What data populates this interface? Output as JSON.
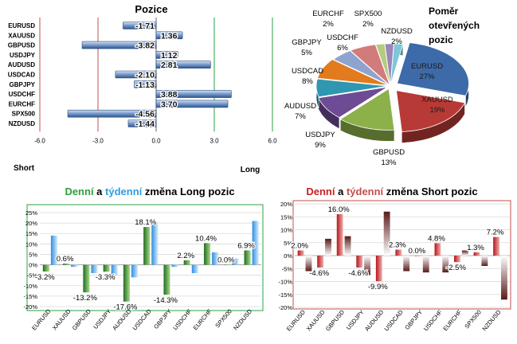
{
  "colors": {
    "bar_blue": "#5f86bf",
    "long_daily": "#2f8a2f",
    "long_weekly": "#4aa6e6",
    "short_daily": "#c62026",
    "short_weekly": "#5a1a1a",
    "green_line": "#2ea043",
    "red_line": "#c0504d"
  },
  "chart_data": [
    {
      "type": "bar",
      "orientation": "horizontal",
      "title": "Pozice",
      "categories": [
        "EURUSD",
        "XAUUSD",
        "GBPUSD",
        "USDJPY",
        "AUDUSD",
        "USDCAD",
        "GBPJPY",
        "USDCHF",
        "EURCHF",
        "SPX500",
        "NZDUSD"
      ],
      "values": [
        -1.71,
        1.36,
        -3.82,
        1.12,
        2.81,
        -2.1,
        -1.13,
        3.88,
        3.7,
        -4.56,
        -1.44
      ],
      "value_labels": [
        "-1.71",
        "1.36",
        "-3.82",
        "1.12",
        "2.81",
        "-2.10",
        "-1.13",
        "3.88",
        "3.70",
        "-4.56",
        "-1.44"
      ],
      "xlim": [
        -6,
        6
      ],
      "xticks": [
        "-6.0",
        "-3.0",
        "0.0",
        "3.0",
        "6.0"
      ],
      "xtick_values": [
        -6,
        -3,
        0,
        3,
        6
      ],
      "side_labels": {
        "left": "Short",
        "right": "Long"
      }
    },
    {
      "type": "pie",
      "title": "Poměr otevřených pozic",
      "slices": [
        {
          "label": "EURUSD",
          "value": 27,
          "text": "27%",
          "color": "#3d6aa8"
        },
        {
          "label": "XAUUSD",
          "value": 19,
          "text": "19%",
          "color": "#b83a36"
        },
        {
          "label": "GBPUSD",
          "value": 13,
          "text": "13%",
          "color": "#8cb04a"
        },
        {
          "label": "USDJPY",
          "value": 9,
          "text": "9%",
          "color": "#6e4b94"
        },
        {
          "label": "AUDUSD",
          "value": 7,
          "text": "7%",
          "color": "#2f97b0"
        },
        {
          "label": "USDCAD",
          "value": 8,
          "text": "8%",
          "color": "#e27a1e"
        },
        {
          "label": "GBPJPY",
          "value": 5,
          "text": "5%",
          "color": "#8ea4cf"
        },
        {
          "label": "USDCHF",
          "value": 6,
          "text": "6%",
          "color": "#d17b7a"
        },
        {
          "label": "EURCHF",
          "value": 2,
          "text": "2%",
          "color": "#b4cc7e"
        },
        {
          "label": "SPX500",
          "value": 2,
          "text": "2%",
          "color": "#9b86b8"
        },
        {
          "label": "NZDUSD",
          "value": 2,
          "text": "2%",
          "color": "#7ec6d8"
        }
      ]
    },
    {
      "type": "bar",
      "title_parts": [
        "Denní",
        " a ",
        "týdenní",
        " změna Long pozic"
      ],
      "categories": [
        "EURUSD",
        "XAUUSD",
        "GBPUSD",
        "USDJPY",
        "AUDUSD",
        "USDCAD",
        "GBPJPY",
        "USDCHF",
        "EURCHF",
        "SPX500",
        "NZDUSD"
      ],
      "series": [
        {
          "values": [
            -3.2,
            0.6,
            -13.2,
            -3.3,
            -17.6,
            18.1,
            -14.3,
            2.2,
            10.4,
            0.0,
            6.9
          ]
        },
        {
          "values": [
            14.0,
            -1.0,
            -4.0,
            -5.0,
            -6.0,
            20.5,
            -1.0,
            -4.0,
            6.0,
            3.0,
            21.0
          ]
        }
      ],
      "data_labels": [
        "-3.2%",
        "0.6%",
        "-13.2%",
        "-3.3%",
        "-17.6%",
        "18.1%",
        "-14.3%",
        "2.2%",
        "10.4%",
        "0.0%",
        "6.9%"
      ],
      "ylim": [
        -20,
        25
      ],
      "yticks": [
        "-20%",
        "-15%",
        "-10%",
        "-5%",
        "0%",
        "5%",
        "10%",
        "15%",
        "20%",
        "25%"
      ],
      "ytick_values": [
        -20,
        -15,
        -10,
        -5,
        0,
        5,
        10,
        15,
        20,
        25
      ]
    },
    {
      "type": "bar",
      "title_parts": [
        "Denní",
        " a ",
        "týdenní",
        " změna Short pozic"
      ],
      "categories": [
        "EURUSD",
        "XAUUSD",
        "GBPUSD",
        "USDJPY",
        "AUDUSD",
        "USDCAD",
        "GBPJPY",
        "USDCHF",
        "EURCHF",
        "SPX500",
        "NZDUSD"
      ],
      "series": [
        {
          "values": [
            2.0,
            -4.6,
            16.0,
            -4.6,
            -9.9,
            2.3,
            0.0,
            4.8,
            -2.5,
            1.3,
            7.2
          ]
        },
        {
          "values": [
            -6.0,
            6.5,
            7.5,
            -7.5,
            17.0,
            -6.0,
            -6.5,
            -6.5,
            2.0,
            -4.0,
            -17.0
          ]
        }
      ],
      "data_labels": [
        "2.0%",
        "-4.6%",
        "16.0%",
        "-4.6%",
        "-9.9%",
        "2.3%",
        "0.0%",
        "4.8%",
        "-2.5%",
        "1.3%",
        "7.2%"
      ],
      "ylim": [
        -20,
        20
      ],
      "yticks": [
        "-20%",
        "-15%",
        "-10%",
        "-5%",
        "0%",
        "5%",
        "10%",
        "15%",
        "20%"
      ],
      "ytick_values": [
        -20,
        -15,
        -10,
        -5,
        0,
        5,
        10,
        15,
        20
      ]
    }
  ]
}
